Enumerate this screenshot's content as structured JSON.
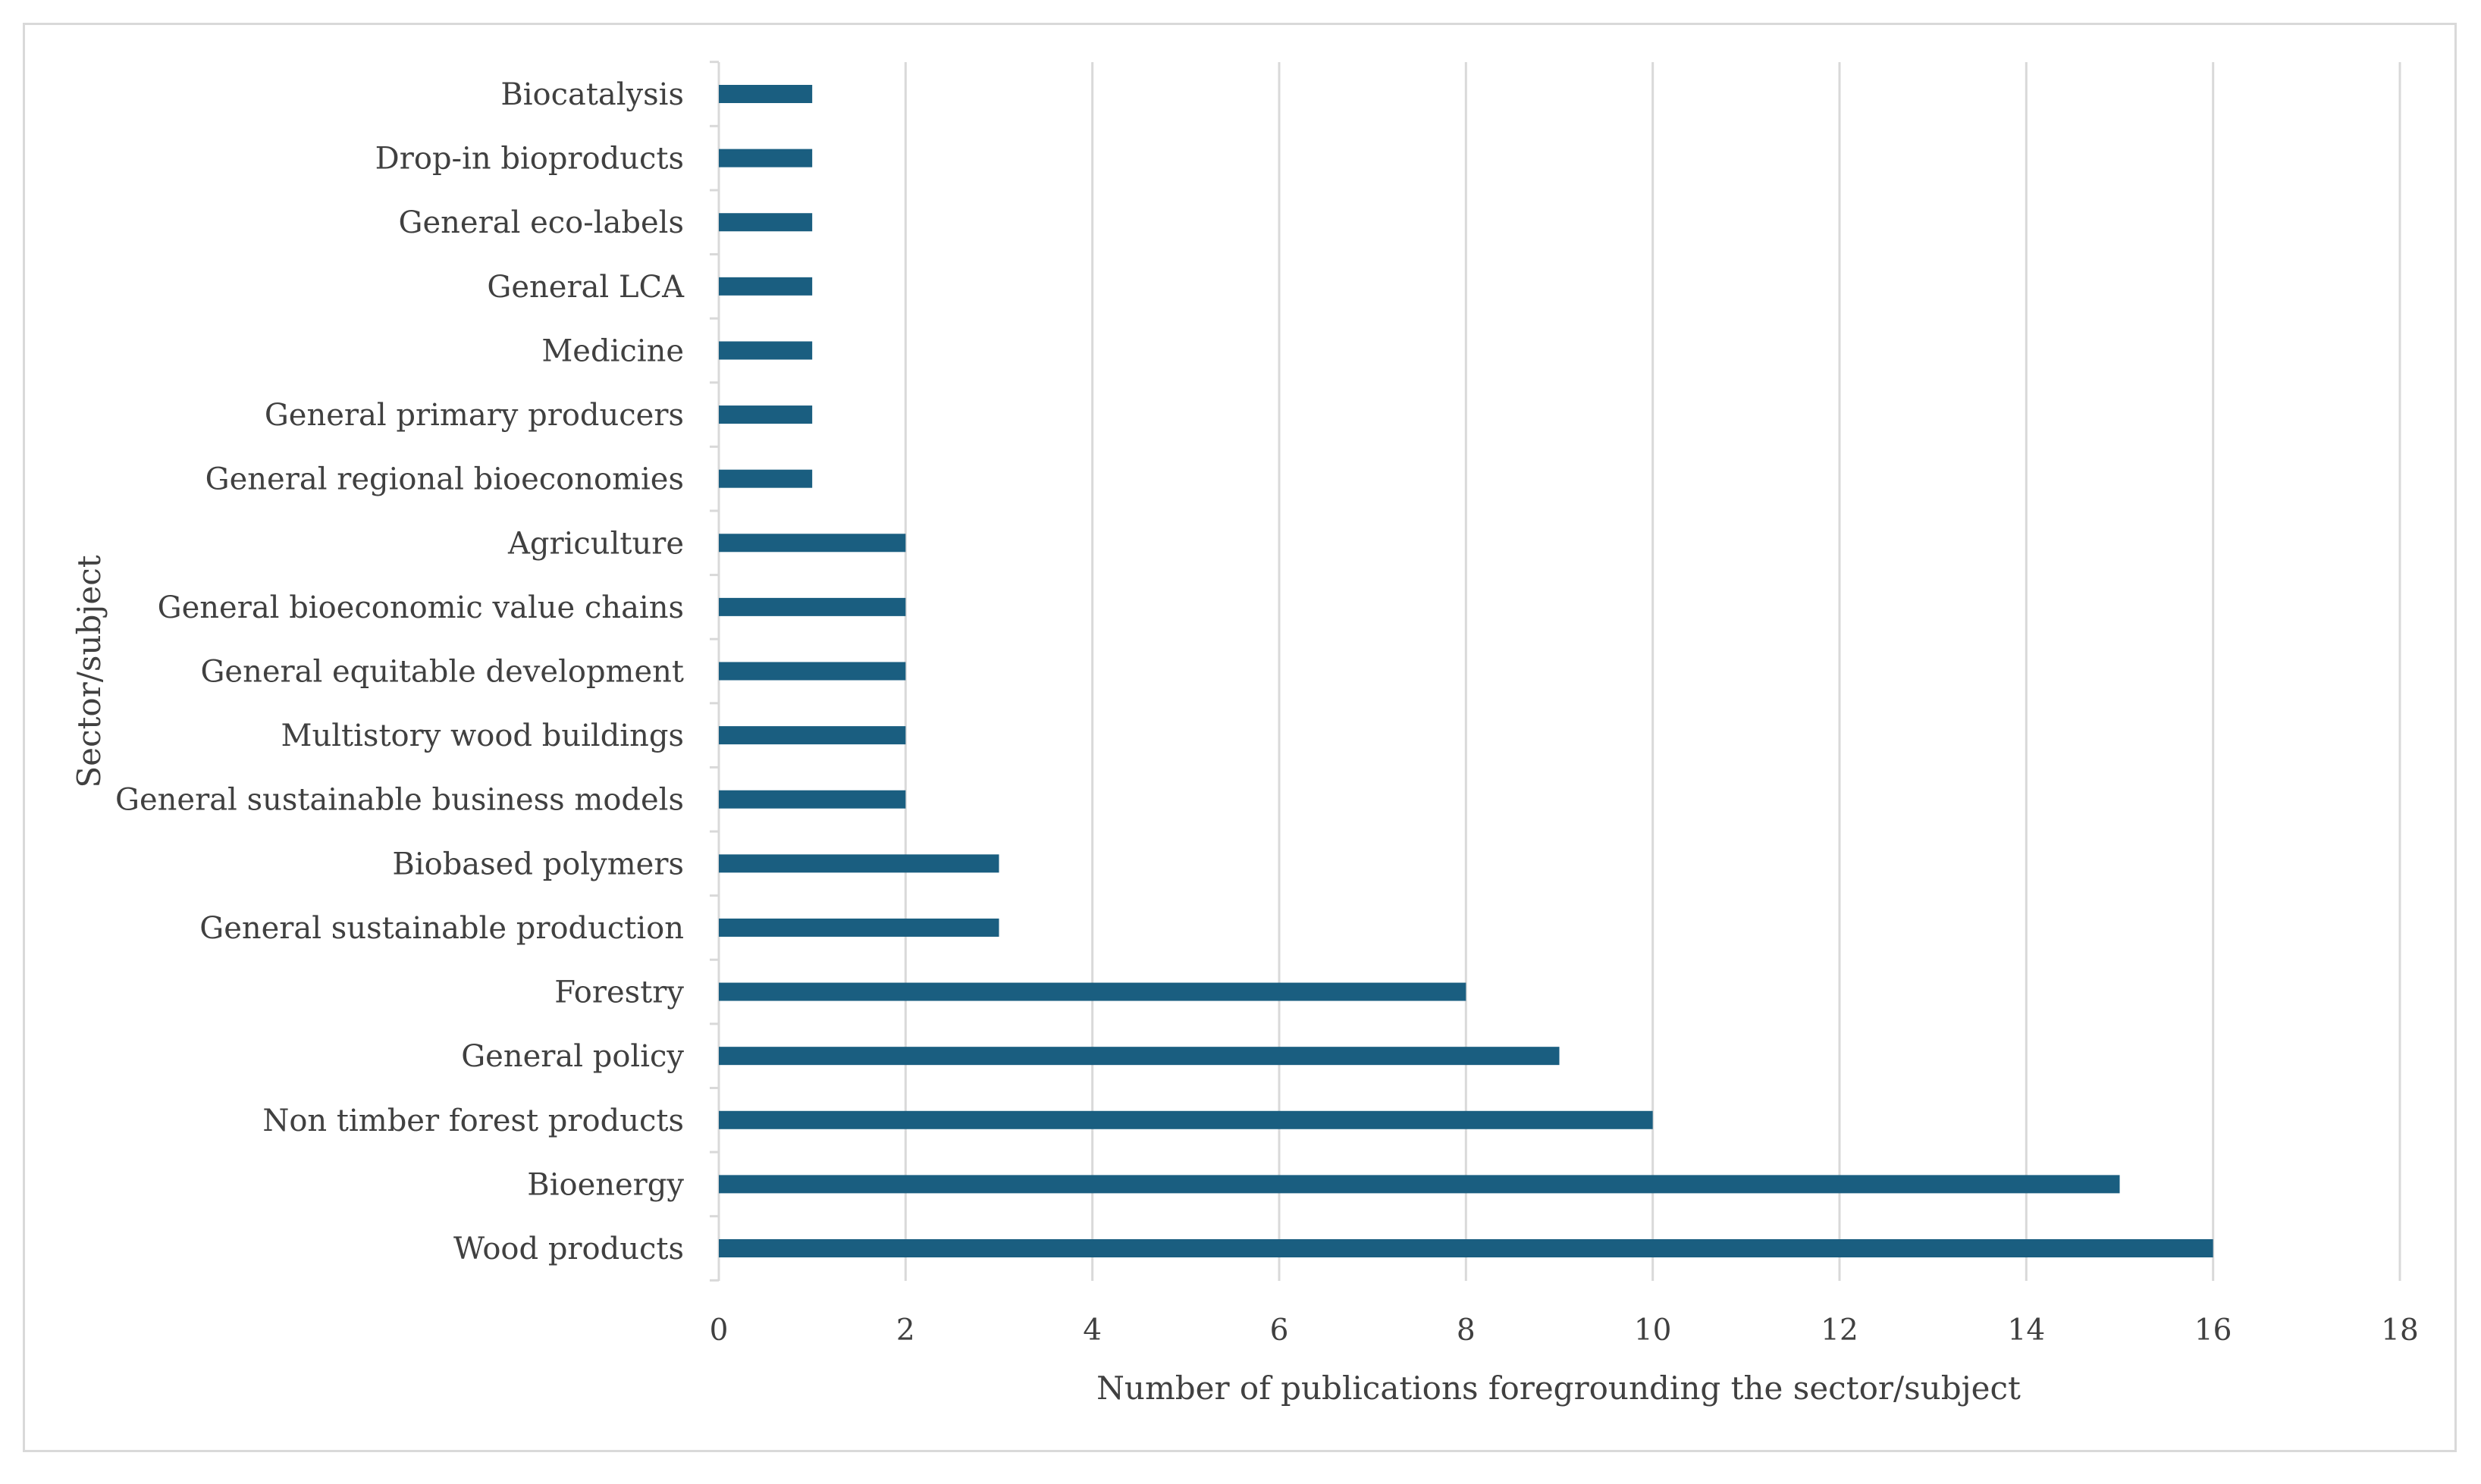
{
  "chart_data": {
    "type": "bar",
    "orientation": "horizontal",
    "categories": [
      "Biocatalysis",
      "Drop-in bioproducts",
      "General eco-labels",
      "General LCA",
      "Medicine",
      "General primary producers",
      "General regional bioeconomies",
      "Agriculture",
      "General bioeconomic value chains",
      "General equitable development",
      "Multistory wood buildings",
      "General sustainable business models",
      "Biobased polymers",
      "General sustainable production",
      "Forestry",
      "General policy",
      "Non timber forest products",
      "Bioenergy",
      "Wood products"
    ],
    "values": [
      1,
      1,
      1,
      1,
      1,
      1,
      1,
      2,
      2,
      2,
      2,
      2,
      3,
      3,
      8,
      9,
      10,
      15,
      16
    ],
    "xlabel": "Number of publications foregrounding the sector/subject",
    "ylabel": "Sector/subject",
    "xlim": [
      0,
      18
    ],
    "xticks": [
      "0",
      "2",
      "4",
      "6",
      "8",
      "10",
      "12",
      "14",
      "16",
      "18"
    ],
    "grid": "vertical",
    "legend": "none",
    "bar_color": "#1a5e80",
    "grid_color": "#d9d9d9",
    "text_color": "#404040"
  }
}
